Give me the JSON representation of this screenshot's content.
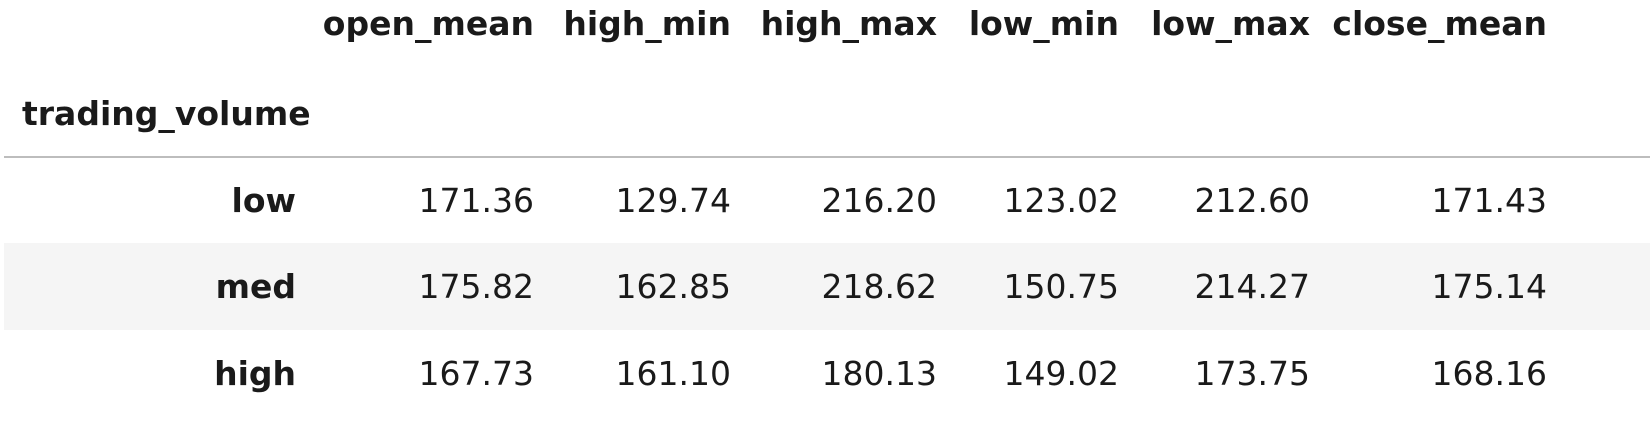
{
  "table": {
    "columns": [
      "open_mean",
      "high_min",
      "high_max",
      "low_min",
      "low_max",
      "close_mean"
    ],
    "index_name": "trading_volume",
    "rows": [
      {
        "index": "low",
        "values": [
          "171.36",
          "129.74",
          "216.20",
          "123.02",
          "212.60",
          "171.43"
        ]
      },
      {
        "index": "med",
        "values": [
          "175.82",
          "162.85",
          "218.62",
          "150.75",
          "214.27",
          "175.14"
        ]
      },
      {
        "index": "high",
        "values": [
          "167.73",
          "161.10",
          "180.13",
          "149.02",
          "173.75",
          "168.16"
        ]
      }
    ]
  }
}
